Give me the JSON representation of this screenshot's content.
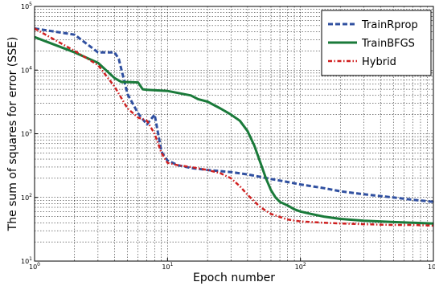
{
  "chart_data": {
    "type": "line",
    "xlabel": "Epoch number",
    "ylabel": "The sum of squares for error (SSE)",
    "xscale": "log",
    "yscale": "log",
    "xlim": [
      1,
      1000
    ],
    "ylim": [
      10,
      100000
    ],
    "x_ticks": [
      {
        "base": "10",
        "exp": "0",
        "value": 1
      },
      {
        "base": "10",
        "exp": "1",
        "value": 10
      },
      {
        "base": "10",
        "exp": "2",
        "value": 100
      },
      {
        "base": "10",
        "exp": "3",
        "value": 1000
      }
    ],
    "y_ticks": [
      {
        "base": "10",
        "exp": "1",
        "value": 10
      },
      {
        "base": "10",
        "exp": "2",
        "value": 100
      },
      {
        "base": "10",
        "exp": "3",
        "value": 1000
      },
      {
        "base": "10",
        "exp": "4",
        "value": 10000
      },
      {
        "base": "10",
        "exp": "5",
        "value": 100000
      }
    ],
    "grid": true,
    "legend_position": "top-right",
    "series": [
      {
        "name": "TrainRprop",
        "color": "#3050a0",
        "style": "dashed",
        "x": [
          1,
          2,
          3,
          4,
          4.3,
          5,
          6,
          7,
          8,
          8.5,
          9,
          10,
          12,
          15,
          20,
          30,
          40,
          50,
          60,
          80,
          100,
          150,
          200,
          300,
          500,
          700,
          1000
        ],
        "y": [
          45000,
          36000,
          19000,
          19000,
          15000,
          4200,
          2100,
          1400,
          2000,
          1000,
          520,
          380,
          320,
          290,
          270,
          250,
          230,
          210,
          195,
          175,
          160,
          140,
          125,
          112,
          100,
          92,
          85
        ]
      },
      {
        "name": "TrainBFGS",
        "color": "#1a7a3a",
        "style": "solid",
        "x": [
          1,
          2,
          3,
          4,
          4.5,
          5,
          6,
          6.5,
          7,
          10,
          15,
          17,
          20,
          25,
          30,
          35,
          40,
          45,
          50,
          55,
          60,
          65,
          70,
          80,
          90,
          100,
          120,
          150,
          200,
          300,
          500,
          700,
          1000
        ],
        "y": [
          33000,
          19000,
          13000,
          7500,
          6500,
          6500,
          6400,
          5000,
          4900,
          4700,
          4000,
          3500,
          3200,
          2500,
          2000,
          1600,
          1100,
          650,
          350,
          200,
          130,
          100,
          85,
          75,
          65,
          60,
          55,
          50,
          46,
          43,
          41,
          40,
          39
        ]
      },
      {
        "name": "Hybrid",
        "color": "#d02020",
        "style": "dashdot",
        "x": [
          1,
          2,
          3,
          4,
          5,
          6,
          7,
          8,
          9,
          10,
          12,
          15,
          20,
          25,
          30,
          35,
          40,
          50,
          60,
          80,
          100,
          150,
          200,
          300,
          500,
          700,
          1000
        ],
        "y": [
          45000,
          20000,
          12000,
          5500,
          2500,
          1800,
          1600,
          1000,
          500,
          350,
          320,
          300,
          270,
          240,
          200,
          150,
          110,
          70,
          55,
          45,
          42,
          40,
          39,
          38,
          37,
          37,
          36
        ]
      }
    ]
  }
}
